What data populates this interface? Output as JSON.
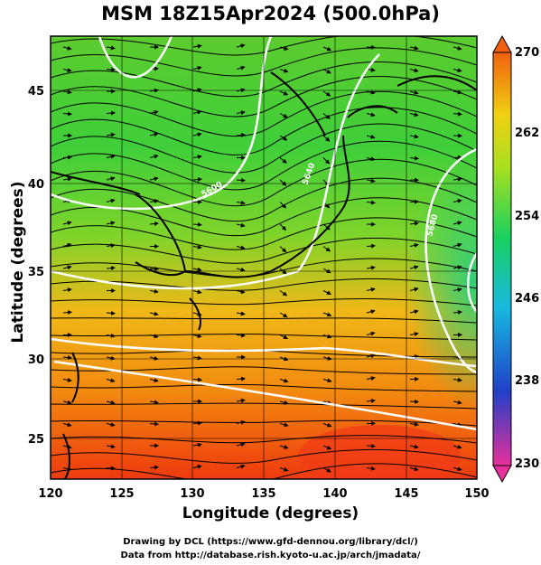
{
  "title": "MSM 18Z15Apr2024 (500.0hPa)",
  "axes": {
    "xlabel": "Longitude (degrees)",
    "ylabel": "Latitude  (degrees)",
    "x_ticks": [
      "120",
      "125",
      "130",
      "135",
      "140",
      "145",
      "150"
    ],
    "y_ticks": [
      "25",
      "30",
      "35",
      "40",
      "45"
    ],
    "xlim": [
      120,
      150
    ],
    "ylim": [
      22.5,
      48
    ]
  },
  "colorbar": {
    "ticks": [
      "270",
      "262",
      "254",
      "246",
      "238",
      "230"
    ],
    "range": [
      230,
      270
    ],
    "colors": [
      "#e8309a",
      "#2040c8",
      "#18b8e0",
      "#18d060",
      "#a8e020",
      "#f0d010",
      "#f06010"
    ]
  },
  "credits": {
    "line1": "Drawing by DCL (https://www.gfd-dennou.org/library/dcl/)",
    "line2": "Data from http://database.rish.kyoto-u.ac.jp/arch/jmadata/"
  },
  "contour_labels": [
    "5600",
    "5640",
    "5680"
  ]
}
